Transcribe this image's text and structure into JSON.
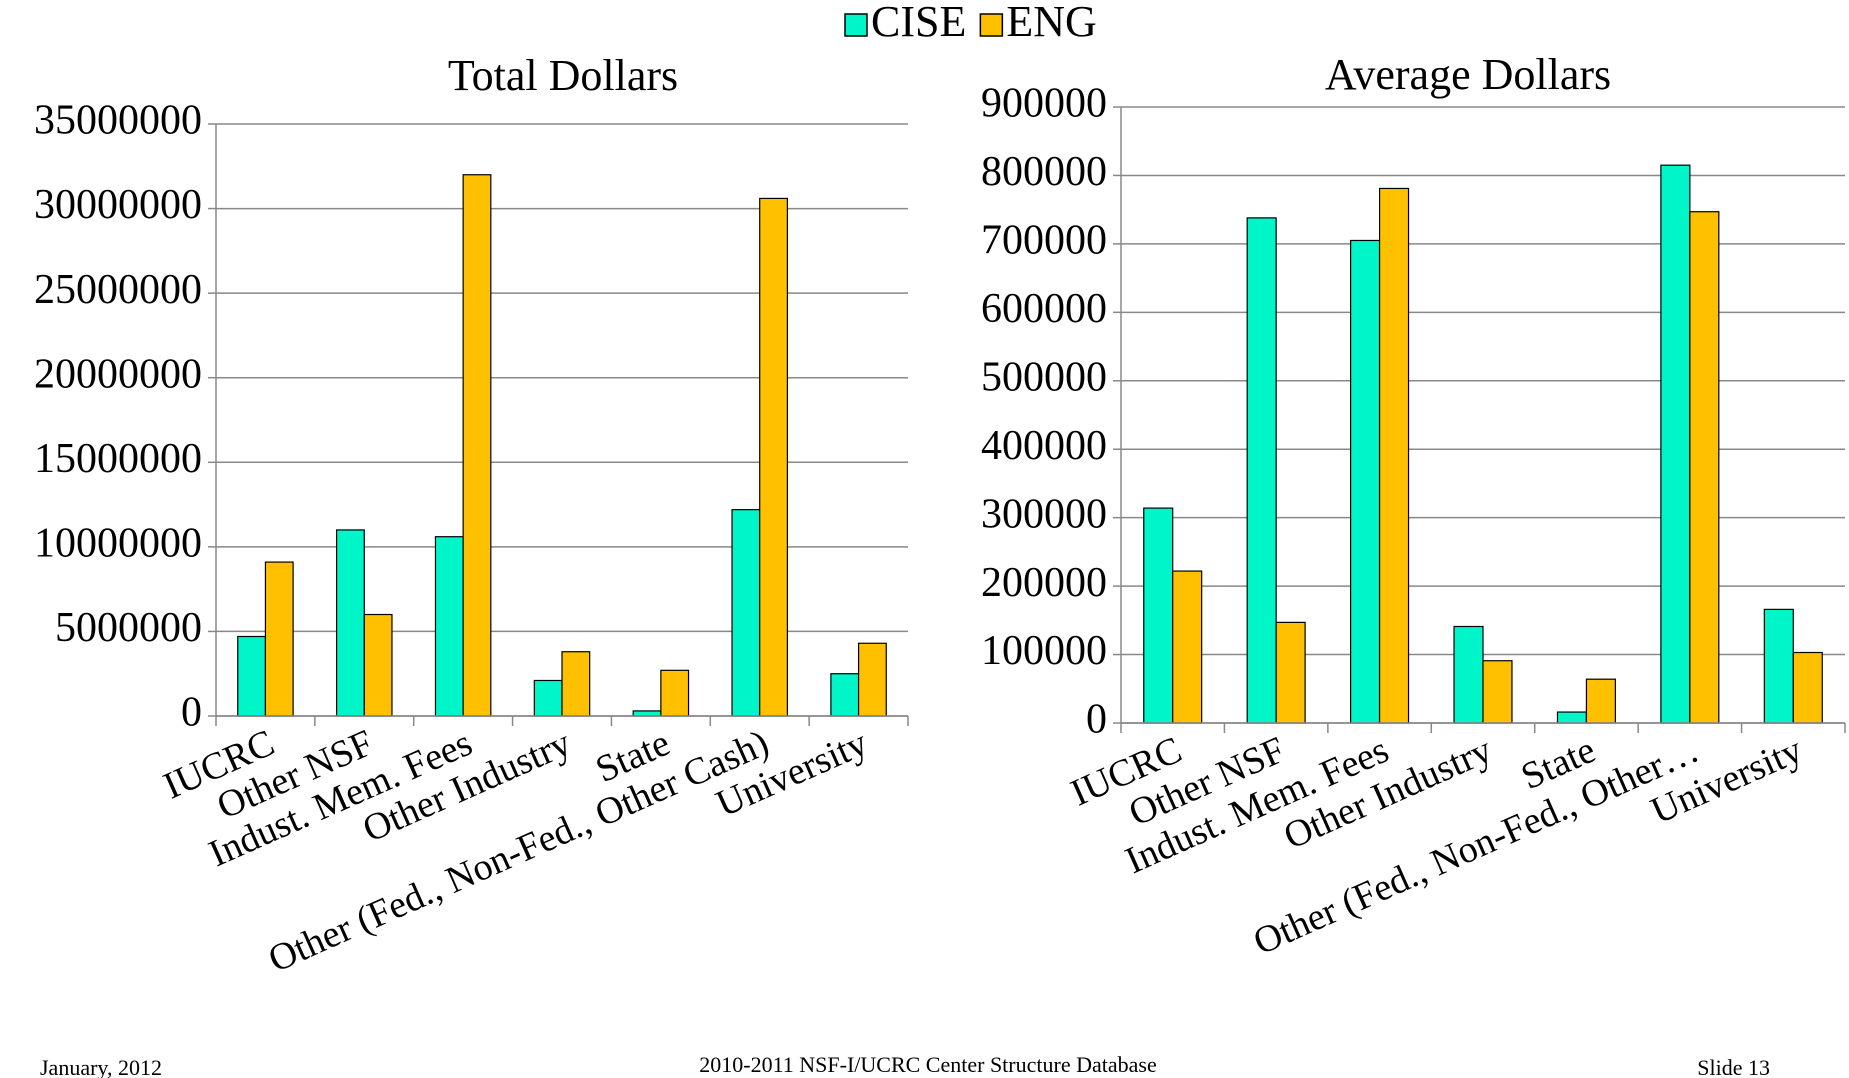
{
  "chart_data": [
    {
      "type": "bar",
      "title": "Total Dollars",
      "categories": [
        "IUCRC",
        "Other NSF",
        "Indust. Mem. Fees",
        "Other Industry",
        "State",
        "Other (Fed., Non-Fed., Other Cash)",
        "University"
      ],
      "series": [
        {
          "name": "CISE",
          "color": "#00f5c8",
          "values": [
            4700000,
            11000000,
            10600000,
            2100000,
            300000,
            12200000,
            2500000
          ]
        },
        {
          "name": "ENG",
          "color": "#ffc000",
          "values": [
            9100000,
            6000000,
            32000000,
            3800000,
            2700000,
            30600000,
            4300000
          ]
        }
      ],
      "ylim": [
        0,
        35000000
      ],
      "yticks": [
        0,
        5000000,
        10000000,
        15000000,
        20000000,
        25000000,
        30000000,
        35000000
      ],
      "grid": true
    },
    {
      "type": "bar",
      "title": "Average Dollars",
      "categories": [
        "IUCRC",
        "Other NSF",
        "Indust. Mem. Fees",
        "Other Industry",
        "State",
        "Other (Fed., Non-Fed., Other…",
        "University"
      ],
      "series": [
        {
          "color": "#00f5c8",
          "values": [
            314000,
            738000,
            705000,
            141000,
            16000,
            815000,
            166000
          ]
        },
        {
          "color": "#ffc000",
          "values": [
            222000,
            147000,
            781000,
            91000,
            64000,
            747000,
            103000
          ]
        }
      ],
      "ylim": [
        0,
        900000
      ],
      "yticks": [
        0,
        100000,
        200000,
        300000,
        400000,
        500000,
        600000,
        700000,
        800000,
        900000
      ],
      "grid": true
    }
  ],
  "footer": {
    "date": "January, 2012",
    "source": "2010-2011 NSF-I/UCRC Center Structure Database",
    "slide": "Slide 13"
  }
}
